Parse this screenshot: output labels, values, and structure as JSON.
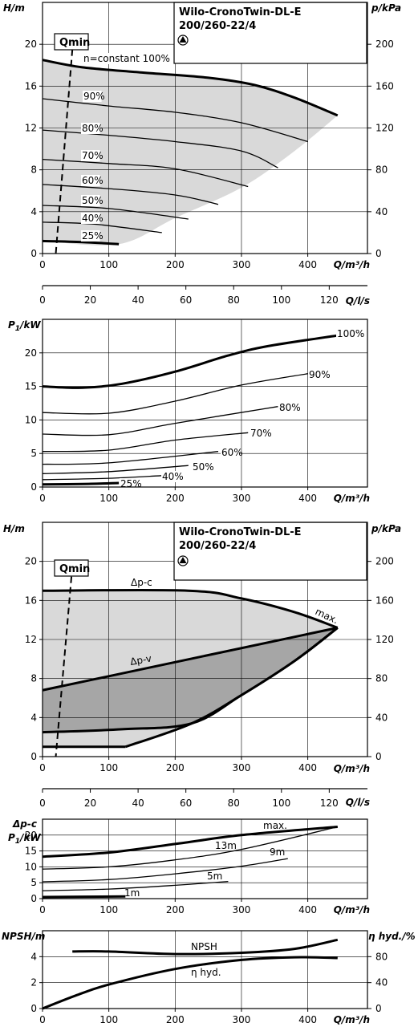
{
  "chart_data": [
    {
      "type": "line",
      "subject": "pump-1-head",
      "title_line1": "Wilo-CronoTwin-DL-E",
      "title_line2": "200/260-22/4",
      "qmin_label": "Qmin",
      "ylabel": "H/m",
      "y2label": "p/kPa",
      "xlabel": "Q/m³/h",
      "xlim": [
        0,
        490
      ],
      "ylim": [
        0,
        24
      ],
      "x_ticks": [
        0,
        100,
        200,
        300,
        400
      ],
      "y_ticks": [
        0,
        4,
        8,
        12,
        16,
        20
      ],
      "y2_ticks": [
        0,
        40,
        80,
        120,
        160,
        200
      ],
      "curves": [
        {
          "label": "n=constant 100%",
          "x": [
            0,
            60,
            150,
            250,
            320,
            380,
            445
          ],
          "y": [
            18.5,
            17.8,
            17.3,
            16.8,
            16.1,
            14.9,
            13.2
          ],
          "bold": true
        },
        {
          "label": "90%",
          "x": [
            0,
            100,
            200,
            300,
            400
          ],
          "y": [
            14.8,
            14.1,
            13.5,
            12.5,
            10.7
          ],
          "bold": false
        },
        {
          "label": "80%",
          "x": [
            0,
            100,
            200,
            300,
            355
          ],
          "y": [
            11.8,
            11.3,
            10.7,
            9.8,
            8.2
          ],
          "bold": false
        },
        {
          "label": "70%",
          "x": [
            0,
            100,
            200,
            310
          ],
          "y": [
            9.0,
            8.6,
            8.1,
            6.4
          ],
          "bold": false
        },
        {
          "label": "60%",
          "x": [
            0,
            100,
            200,
            265
          ],
          "y": [
            6.6,
            6.2,
            5.6,
            4.7
          ],
          "bold": false
        },
        {
          "label": "50%",
          "x": [
            0,
            100,
            220
          ],
          "y": [
            4.6,
            4.3,
            3.3
          ],
          "bold": false
        },
        {
          "label": "40%",
          "x": [
            0,
            80,
            180
          ],
          "y": [
            3.0,
            2.8,
            2.0
          ],
          "bold": false
        },
        {
          "label": "25%",
          "x": [
            0,
            60,
            115
          ],
          "y": [
            1.2,
            1.1,
            0.9
          ],
          "bold": true
        }
      ],
      "envelope": {
        "upper_x": [
          0,
          60,
          150,
          250,
          320,
          380,
          445
        ],
        "upper_y": [
          18.5,
          17.8,
          17.3,
          16.8,
          16.1,
          14.9,
          13.2
        ],
        "lower_x": [
          445,
          380,
          300,
          200,
          115,
          0
        ],
        "lower_y": [
          13.2,
          9.8,
          6.3,
          3.4,
          0.9,
          1.2
        ]
      },
      "qmin_line": {
        "x": [
          45,
          20
        ],
        "y": [
          19.5,
          0
        ]
      }
    },
    {
      "type": "axis",
      "subject": "flow-litres-per-second",
      "xlabel": "Q/l/s",
      "x_ticks": [
        0,
        20,
        40,
        60,
        80,
        100,
        120
      ],
      "xlim": [
        0,
        136
      ]
    },
    {
      "type": "line",
      "subject": "power-input",
      "ylabel_main": "P",
      "ylabel_sub": "1",
      "ylabel_unit": "/kW",
      "xlabel": "Q/m³/h",
      "xlim": [
        0,
        490
      ],
      "ylim": [
        0,
        25
      ],
      "x_ticks": [
        0,
        100,
        200,
        300,
        400
      ],
      "y_ticks": [
        0,
        5,
        10,
        15,
        20
      ],
      "curves": [
        {
          "label": "100%",
          "x": [
            0,
            60,
            120,
            200,
            280,
            340,
            445
          ],
          "y": [
            15.0,
            14.8,
            15.4,
            17.2,
            19.6,
            21.0,
            22.6
          ],
          "bold": true
        },
        {
          "label": "90%",
          "x": [
            0,
            100,
            200,
            300,
            400
          ],
          "y": [
            11.1,
            11.0,
            12.8,
            15.2,
            16.9
          ],
          "bold": false
        },
        {
          "label": "80%",
          "x": [
            0,
            100,
            200,
            355
          ],
          "y": [
            7.9,
            7.8,
            9.5,
            12.0
          ],
          "bold": false
        },
        {
          "label": "70%",
          "x": [
            0,
            100,
            200,
            310
          ],
          "y": [
            5.3,
            5.5,
            7.0,
            8.1
          ],
          "bold": false
        },
        {
          "label": "60%",
          "x": [
            0,
            100,
            265
          ],
          "y": [
            3.4,
            3.6,
            5.3
          ],
          "bold": false
        },
        {
          "label": "50%",
          "x": [
            0,
            100,
            220
          ],
          "y": [
            2.0,
            2.3,
            3.2
          ],
          "bold": false
        },
        {
          "label": "40%",
          "x": [
            0,
            100,
            180
          ],
          "y": [
            1.1,
            1.3,
            1.7
          ],
          "bold": false
        },
        {
          "label": "25%",
          "x": [
            0,
            60,
            115
          ],
          "y": [
            0.4,
            0.45,
            0.6
          ],
          "bold": true
        }
      ]
    },
    {
      "type": "area",
      "subject": "pump-2-head-dp-control",
      "title_line1": "Wilo-CronoTwin-DL-E",
      "title_line2": "200/260-22/4",
      "qmin_label": "Qmin",
      "ylabel": "H/m",
      "y2label": "p/kPa",
      "xlabel": "Q/m³/h",
      "xlim": [
        0,
        490
      ],
      "ylim": [
        0,
        24
      ],
      "x_ticks": [
        0,
        100,
        200,
        300,
        400
      ],
      "y_ticks": [
        0,
        4,
        8,
        12,
        16,
        20
      ],
      "y2_ticks": [
        0,
        40,
        80,
        120,
        160,
        200
      ],
      "labels": {
        "dpc": "Δp-c",
        "dpv": "Δp-v",
        "max": "max."
      },
      "max_curve": {
        "x": [
          0,
          220,
          300,
          380,
          445
        ],
        "y": [
          17.0,
          17.0,
          16.2,
          14.8,
          13.2
        ]
      },
      "dpc_bottom": {
        "x": [
          0,
          125
        ],
        "y": [
          1.0,
          1.0
        ]
      },
      "lower_boundary": {
        "x": [
          445,
          380,
          300,
          225,
          125
        ],
        "y": [
          13.2,
          9.8,
          6.3,
          3.4,
          1.0
        ]
      },
      "dpv_top": {
        "x": [
          0,
          445
        ],
        "y": [
          6.8,
          13.2
        ]
      },
      "dpv_bottom": {
        "x": [
          0,
          120,
          225,
          300,
          380,
          445
        ],
        "y": [
          2.5,
          2.8,
          3.4,
          6.3,
          9.8,
          13.2
        ]
      },
      "qmin_line": {
        "x": [
          45,
          20
        ],
        "y": [
          19.5,
          0
        ]
      }
    },
    {
      "type": "axis",
      "subject": "flow-litres-per-second-2",
      "xlabel": "Q/l/s",
      "x_ticks": [
        0,
        20,
        40,
        60,
        80,
        100,
        120
      ],
      "xlim": [
        0,
        136
      ]
    },
    {
      "type": "line",
      "subject": "power-input-dp-control",
      "ylabel_line1": "Δp-c",
      "ylabel_main": "P",
      "ylabel_sub": "1",
      "ylabel_unit": "/kW",
      "xlabel": "Q/m³/h",
      "xlim": [
        0,
        490
      ],
      "ylim": [
        0,
        25
      ],
      "x_ticks": [
        0,
        100,
        200,
        300,
        400
      ],
      "y_ticks": [
        0,
        5,
        10,
        15,
        20
      ],
      "curves": [
        {
          "label": "max.",
          "x": [
            0,
            100,
            200,
            300,
            445
          ],
          "y": [
            13.2,
            14.5,
            17.2,
            20.0,
            22.6
          ],
          "bold": true
        },
        {
          "label": "13m",
          "x": [
            0,
            100,
            200,
            300,
            445
          ],
          "y": [
            9.3,
            10.0,
            12.2,
            15.5,
            22.6
          ],
          "bold": false
        },
        {
          "label": "9m",
          "x": [
            0,
            100,
            200,
            300,
            370
          ],
          "y": [
            5.3,
            6.0,
            7.8,
            10.2,
            12.6
          ],
          "bold": false
        },
        {
          "label": "5m",
          "x": [
            0,
            100,
            200,
            280
          ],
          "y": [
            2.5,
            3.0,
            4.2,
            5.4
          ],
          "bold": false
        },
        {
          "label": "1m",
          "x": [
            0,
            125
          ],
          "y": [
            0.5,
            0.7
          ],
          "bold": true
        }
      ]
    },
    {
      "type": "line",
      "subject": "npsh-efficiency",
      "ylabel": "NPSH/m",
      "y2label": "η hyd./%",
      "xlabel": "Q/m³/h",
      "xlim": [
        0,
        490
      ],
      "ylim": [
        0,
        6
      ],
      "y2lim": [
        0,
        120
      ],
      "x_ticks": [
        0,
        100,
        200,
        300,
        400
      ],
      "y_ticks": [
        0,
        2,
        4
      ],
      "y2_ticks": [
        0,
        40,
        80
      ],
      "curves": [
        {
          "label": "NPSH",
          "axis": "left",
          "x": [
            45,
            100,
            200,
            300,
            380,
            445
          ],
          "y": [
            4.4,
            4.4,
            4.2,
            4.3,
            4.6,
            5.3
          ],
          "bold": true
        },
        {
          "label": "η hyd.",
          "axis": "right",
          "x": [
            0,
            50,
            100,
            200,
            300,
            380,
            445
          ],
          "y": [
            0,
            20,
            37,
            61,
            75,
            79,
            78
          ],
          "bold": true
        }
      ]
    }
  ]
}
